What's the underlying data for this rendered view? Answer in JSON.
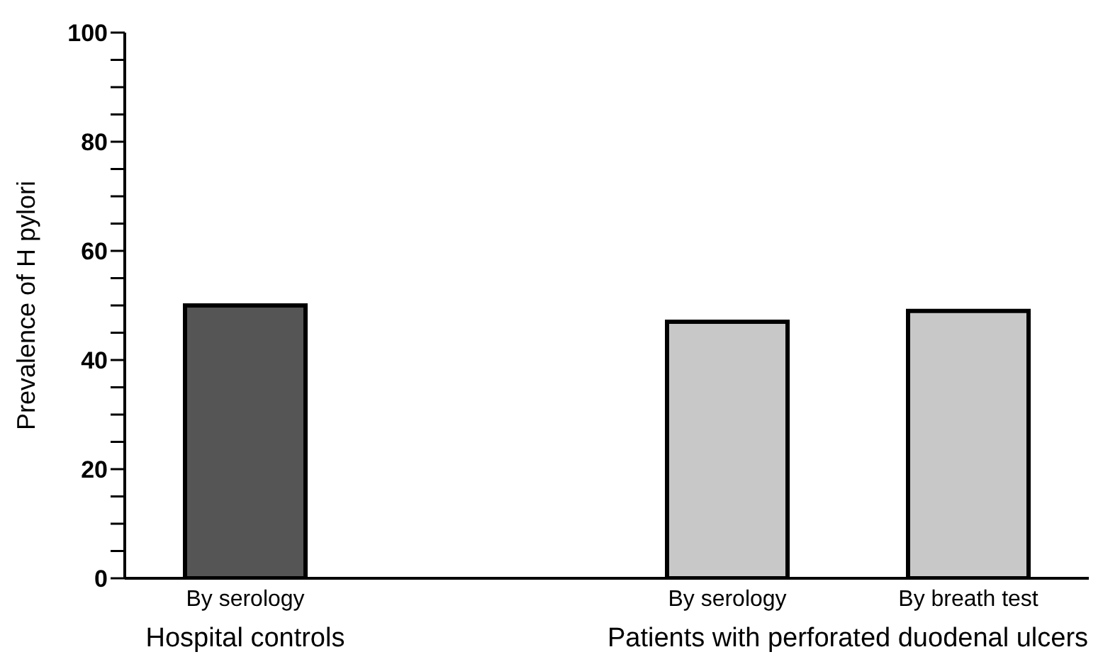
{
  "chart_data": {
    "type": "bar",
    "ylabel": "Prevalence of H pylori",
    "categories": [
      "By serology",
      null,
      "By serology",
      "By breath test"
    ],
    "values": [
      50,
      null,
      47,
      49
    ],
    "colors": [
      "#555555",
      null,
      "#c8c8c8",
      "#c8c8c8"
    ],
    "ylim": [
      0,
      100
    ],
    "yticks": [
      0,
      {
        "value": 5,
        "label": null
      },
      {
        "value": 10,
        "label": null
      },
      {
        "value": 15,
        "label": null
      },
      20,
      {
        "value": 25,
        "label": null
      },
      {
        "value": 30,
        "label": null
      },
      {
        "value": 35,
        "label": null
      },
      40,
      {
        "value": 45,
        "label": null
      },
      {
        "value": 50,
        "label": null
      },
      {
        "value": 55,
        "label": null
      },
      60,
      {
        "value": 65,
        "label": null
      },
      {
        "value": 70,
        "label": null
      },
      {
        "value": 75,
        "label": null
      },
      80,
      {
        "value": 85,
        "label": null
      },
      {
        "value": 90,
        "label": null
      },
      {
        "value": 95,
        "label": null
      },
      100
    ],
    "annotations": [
      "Hospital controls",
      "Patients with perforated duodenal ulcers"
    ],
    "grid": false,
    "legend": false
  }
}
